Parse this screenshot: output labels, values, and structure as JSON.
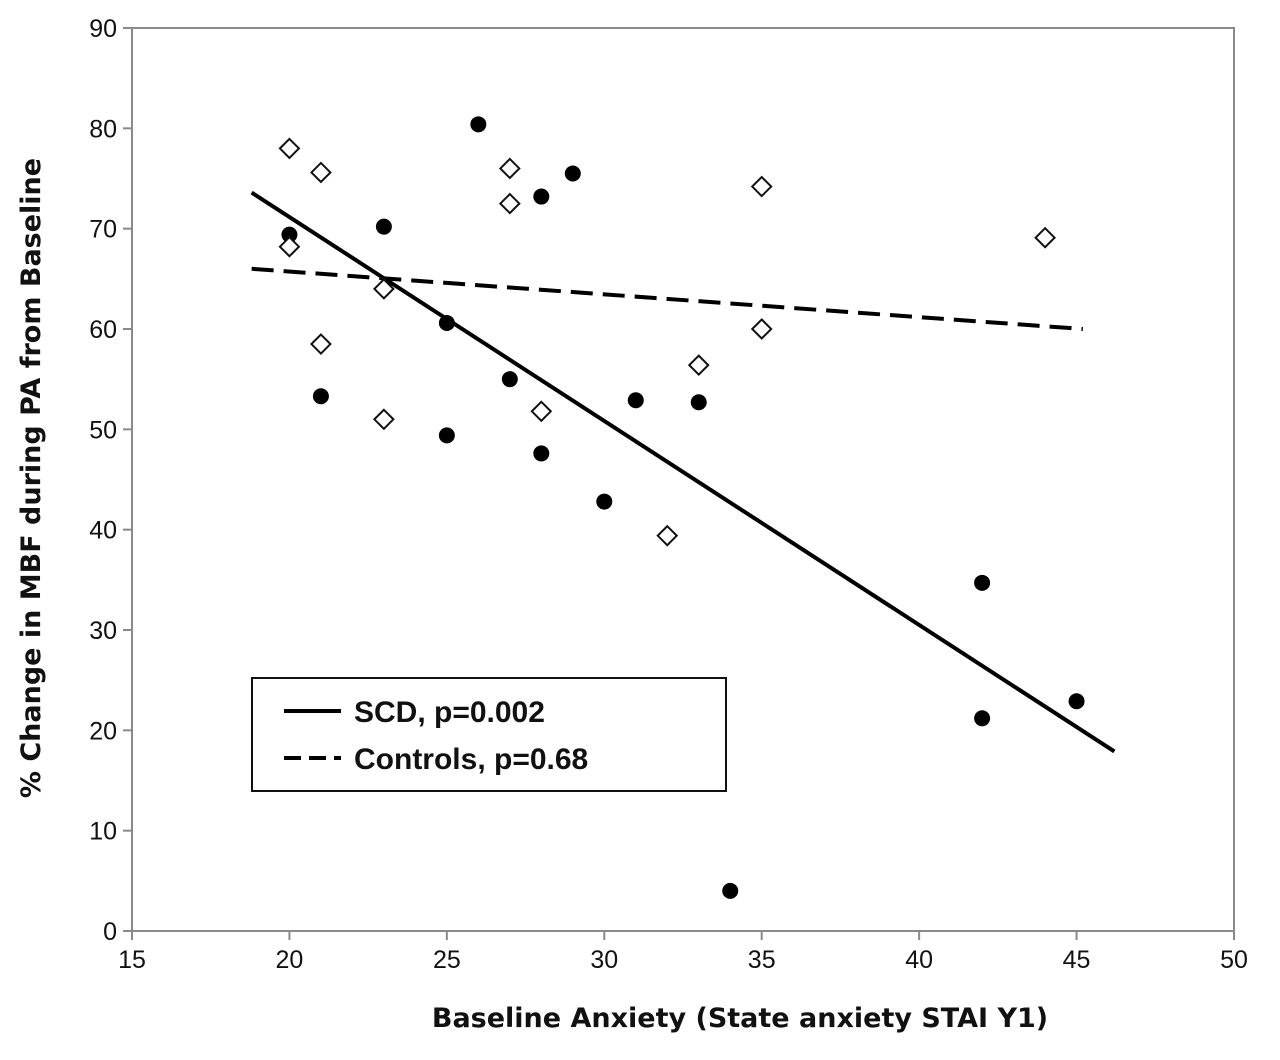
{
  "chart_data": {
    "type": "scatter",
    "title": "",
    "xlabel": "Baseline Anxiety (State anxiety STAI Y1)",
    "ylabel": "% Change in MBF during PA from Baseline",
    "xlim": [
      15,
      50
    ],
    "ylim": [
      0,
      90
    ],
    "xticks": [
      15,
      20,
      25,
      30,
      35,
      40,
      45,
      50
    ],
    "yticks": [
      0,
      10,
      20,
      30,
      40,
      50,
      60,
      70,
      80,
      90
    ],
    "grid": false,
    "legend_position": "bottom-left",
    "series": [
      {
        "name": "SCD",
        "marker": "filled-circle",
        "points": [
          [
            20,
            69.4
          ],
          [
            21,
            53.3
          ],
          [
            23,
            70.2
          ],
          [
            25,
            60.6
          ],
          [
            25,
            49.4
          ],
          [
            26,
            80.4
          ],
          [
            27,
            55.0
          ],
          [
            28,
            73.2
          ],
          [
            28,
            47.6
          ],
          [
            29,
            75.5
          ],
          [
            30,
            42.8
          ],
          [
            31,
            52.9
          ],
          [
            33,
            52.7
          ],
          [
            34,
            4.0
          ],
          [
            42,
            34.7
          ],
          [
            42,
            21.2
          ],
          [
            45,
            22.9
          ]
        ],
        "fit": {
          "style": "solid",
          "x": [
            18.8,
            46.2
          ],
          "y": [
            73.6,
            17.9
          ]
        }
      },
      {
        "name": "Controls",
        "marker": "open-diamond",
        "points": [
          [
            20,
            78.0
          ],
          [
            20,
            68.2
          ],
          [
            21,
            75.6
          ],
          [
            21,
            58.5
          ],
          [
            23,
            64.0
          ],
          [
            23,
            51.0
          ],
          [
            27,
            76.0
          ],
          [
            27,
            72.5
          ],
          [
            28,
            51.8
          ],
          [
            32,
            39.4
          ],
          [
            33,
            56.4
          ],
          [
            35,
            74.2
          ],
          [
            35,
            60.0
          ],
          [
            44,
            69.1
          ]
        ],
        "fit": {
          "style": "dashed",
          "x": [
            18.8,
            45.2
          ],
          "y": [
            66.0,
            60.0
          ]
        }
      }
    ],
    "legend": [
      {
        "label": "SCD, p=0.002",
        "style": "solid"
      },
      {
        "label": "Controls, p=0.68",
        "style": "dashed"
      }
    ]
  }
}
